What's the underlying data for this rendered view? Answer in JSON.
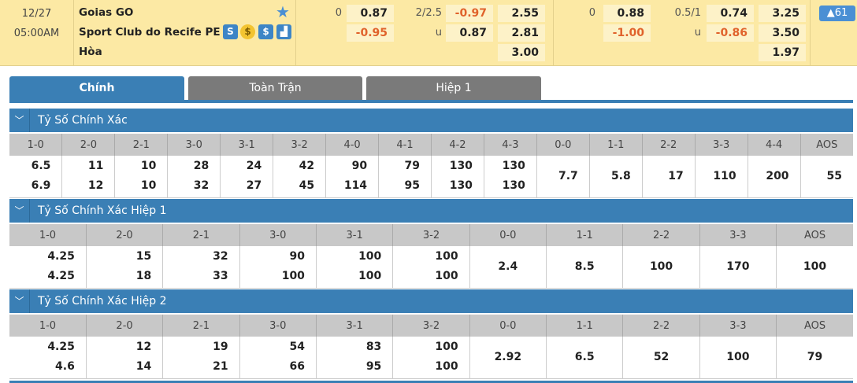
{
  "match": {
    "date": "12/27",
    "time": "05:00AM",
    "home": "Goias GO",
    "away": "Sport Club do Recife PE",
    "draw": "Hòa",
    "badge": "▲61",
    "icons": [
      "stats-s-icon",
      "coin-icon",
      "dollar-icon",
      "bar-chart-icon"
    ]
  },
  "odds": {
    "g1": {
      "hcap": "0",
      "h1": "0.87",
      "h2": "-0.95",
      "ou": "2/2.5",
      "u": "u",
      "o1": "-0.97",
      "o2": "0.87",
      "x1": "2.55",
      "x2": "2.81",
      "x3": "3.00"
    },
    "g2": {
      "hcap": "0",
      "h1": "0.88",
      "h2": "-1.00",
      "ou": "0.5/1",
      "u": "u",
      "o1": "0.74",
      "o2": "-0.86",
      "x1": "3.25",
      "x2": "3.50",
      "x3": "1.97"
    }
  },
  "tabs": [
    "Chính",
    "Toàn Trận",
    "Hiệp 1"
  ],
  "sections": [
    {
      "title": "Tỷ Số Chính Xác",
      "headers": [
        "1-0",
        "2-0",
        "2-1",
        "3-0",
        "3-1",
        "3-2",
        "4-0",
        "4-1",
        "4-2",
        "4-3",
        "0-0",
        "1-1",
        "2-2",
        "3-3",
        "4-4",
        "AOS"
      ],
      "home": [
        "6.5",
        "11",
        "10",
        "28",
        "24",
        "42",
        "90",
        "79",
        "130",
        "130"
      ],
      "away": [
        "6.9",
        "12",
        "10",
        "32",
        "27",
        "45",
        "114",
        "95",
        "130",
        "130"
      ],
      "single": [
        "7.7",
        "5.8",
        "17",
        "110",
        "200",
        "55"
      ]
    },
    {
      "title": "Tỷ Số Chính Xác Hiệp 1",
      "headers": [
        "1-0",
        "2-0",
        "2-1",
        "3-0",
        "3-1",
        "3-2",
        "0-0",
        "1-1",
        "2-2",
        "3-3",
        "AOS"
      ],
      "home": [
        "4.25",
        "15",
        "32",
        "90",
        "100",
        "100"
      ],
      "away": [
        "4.25",
        "18",
        "33",
        "100",
        "100",
        "100"
      ],
      "single": [
        "2.4",
        "8.5",
        "100",
        "170",
        "100"
      ]
    },
    {
      "title": "Tỷ Số Chính Xác Hiệp 2",
      "headers": [
        "1-0",
        "2-0",
        "2-1",
        "3-0",
        "3-1",
        "3-2",
        "0-0",
        "1-1",
        "2-2",
        "3-3",
        "AOS"
      ],
      "home": [
        "4.25",
        "12",
        "19",
        "54",
        "83",
        "100"
      ],
      "away": [
        "4.6",
        "14",
        "21",
        "66",
        "95",
        "100"
      ],
      "single": [
        "2.92",
        "6.5",
        "52",
        "100",
        "79"
      ]
    }
  ],
  "colors": {
    "accent": "#3a7fb5",
    "header_bg": "#fce9a4",
    "negative": "#e0622b",
    "tab_inactive": "#7a7a7a"
  }
}
